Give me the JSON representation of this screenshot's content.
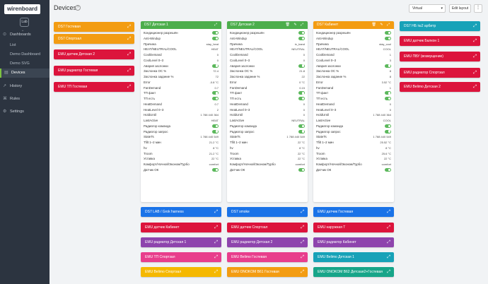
{
  "sidebar": {
    "logo": "wirenboard",
    "location": "Lab",
    "location_caret": "⌄",
    "items": [
      {
        "label": "Dashboards",
        "icon": "dashboard-icon",
        "glyph": "⊙",
        "sub": false,
        "active": false
      },
      {
        "label": "List",
        "sub": true,
        "active": false
      },
      {
        "label": "Demo Dashboard",
        "sub": true,
        "active": false
      },
      {
        "label": "Demo SVG Dashboard",
        "sub": true,
        "active": false
      },
      {
        "label": "Devices",
        "icon": "devices-icon",
        "glyph": "▤",
        "sub": false,
        "active": true
      },
      {
        "label": "History",
        "icon": "history-icon",
        "glyph": "↗",
        "sub": false,
        "active": false
      },
      {
        "label": "Rules",
        "icon": "rules-icon",
        "glyph": "⌘",
        "sub": false,
        "active": false
      },
      {
        "label": "Settings",
        "icon": "settings-icon",
        "glyph": "⚙",
        "sub": false,
        "active": false
      }
    ]
  },
  "header": {
    "title": "Devices",
    "help": "?",
    "select_value": "Virtual",
    "edit_label": "Edit layout",
    "more": "⋮"
  },
  "colors": {
    "orange": "#f39c12",
    "red": "#dc143c",
    "green": "#4cae4c",
    "teal": "#17a2b8",
    "blue": "#1a73e8",
    "purple": "#8e44ad",
    "pink": "#e83e8c",
    "yellow": "#f5b800",
    "sea": "#17a589",
    "sidebar": "#2c3440"
  },
  "col1": [
    {
      "label": "DS7 Гостевая",
      "color": "#f39c12"
    },
    {
      "label": "DS7 Спортзал",
      "color": "#f39c12"
    },
    {
      "label": "EMU датчик Детская 2",
      "color": "#dc143c"
    },
    {
      "label": "EMU радиатор Гостевая",
      "color": "#dc143c"
    },
    {
      "label": "EMU ТП Гостевая",
      "color": "#dc143c"
    }
  ],
  "col5_header": {
    "label": "DS7 НБ №2 арбитр",
    "color": "#17a2b8"
  },
  "col5": [
    {
      "label": "EMU датчик Балкон 1",
      "color": "#dc143c"
    },
    {
      "label": "EMU ПВУ (возмущение)",
      "color": "#dc143c"
    },
    {
      "label": "EMU радиатор Спортзал",
      "color": "#dc143c"
    },
    {
      "label": "EMU Belimo Детская 2",
      "color": "#dc143c"
    }
  ],
  "cards": [
    {
      "title": "DS7 Детская 1",
      "color": "#4cae4c",
      "tools": "⤢",
      "rows": [
        {
          "n": "Кондиционер разрешён",
          "t": 1
        },
        {
          "n": "Anti-Windup",
          "t": 1
        },
        {
          "n": "Причина",
          "v": "stay_heat"
        },
        {
          "n": "HEAT/NEUTRAL/COOL",
          "v": "HEAT"
        },
        {
          "n": "CoolDemand",
          "v": "0"
        },
        {
          "n": "CoolLevel 0–3",
          "v": "0"
        },
        {
          "n": "Авария заслонки",
          "t": 1
        },
        {
          "n": "Заслонка ОС %",
          "v": "72.4"
        },
        {
          "n": "Заслонка задание %",
          "v": "72"
        },
        {
          "n": "Error",
          "v": "-0.8 °C"
        },
        {
          "n": "FanDemand",
          "v": "0.7"
        },
        {
          "n": "ТП факт",
          "t": 1
        },
        {
          "n": "ТП есть",
          "t": 1
        },
        {
          "n": "HeatDemand",
          "v": "0.7"
        },
        {
          "n": "HeatLevel 0–3",
          "v": "2"
        },
        {
          "n": "HoldUntil",
          "v": "1 788 440 364"
        },
        {
          "n": "LastActive",
          "v": "HEAT"
        },
        {
          "n": "Радиатор команда",
          "t": 1
        },
        {
          "n": "Радиатор запрос",
          "t": 1
        },
        {
          "n": "StateTs",
          "v": "1 788 440 549"
        },
        {
          "n": "Tfilt 1–2 мин",
          "v": "21.2 °C"
        },
        {
          "n": "hv",
          "v": "8 °C"
        },
        {
          "n": "Troom",
          "v": "21.2 °C"
        },
        {
          "n": "Уставка",
          "v": "22 °C"
        },
        {
          "n": "Комфорт/Ночной/Эконом/Турбо",
          "v": "comfort"
        },
        {
          "n": "Датчик ОК",
          "t": 1
        }
      ]
    },
    {
      "title": "DS7 Детская 2",
      "color": "#4cae4c",
      "tools": "🗑 ✎ ⤢",
      "rows": [
        {
          "n": "Кондиционер разрешён",
          "t": 1
        },
        {
          "n": "Anti-Windup",
          "t": 1
        },
        {
          "n": "Причина",
          "v": "in_band"
        },
        {
          "n": "HEAT/NEUTRAL/COOL",
          "v": "NEUTRAL"
        },
        {
          "n": "CoolDemand",
          "v": "0"
        },
        {
          "n": "CoolLevel 0–3",
          "v": "0"
        },
        {
          "n": "Авария заслонки",
          "t": 1
        },
        {
          "n": "Заслонка ОС %",
          "v": "21.8"
        },
        {
          "n": "Заслонка задание %",
          "v": "22"
        },
        {
          "n": "Error",
          "v": "0 °C"
        },
        {
          "n": "FanDemand",
          "v": "0.15"
        },
        {
          "n": "ТП факт",
          "t": 1
        },
        {
          "n": "ТП есть",
          "t": 1
        },
        {
          "n": "HeatDemand",
          "v": "0"
        },
        {
          "n": "HeatLevel 0–3",
          "v": "0"
        },
        {
          "n": "HoldUntil",
          "v": "0"
        },
        {
          "n": "LastActive",
          "v": "NEUTRAL"
        },
        {
          "n": "Радиатор команда",
          "t": 1
        },
        {
          "n": "Радиатор запрос",
          "t": 1
        },
        {
          "n": "StateTs",
          "v": "1 788 440 549"
        },
        {
          "n": "Tfilt 1–2 мин",
          "v": "22 °C"
        },
        {
          "n": "hv",
          "v": "8 °C"
        },
        {
          "n": "Troom",
          "v": "22 °C"
        },
        {
          "n": "Уставка",
          "v": "22 °C"
        },
        {
          "n": "Комфорт/Ночной/Эконом/Турбо",
          "v": "comfort"
        },
        {
          "n": "Датчик ОК",
          "t": 1
        }
      ]
    },
    {
      "title": "DS7 Кабинет",
      "color": "#f39c12",
      "tools": "🗑 ✎ ⤢",
      "rows": [
        {
          "n": "Кондиционер разрешён",
          "t": 1
        },
        {
          "n": "Anti-Windup",
          "t": 1
        },
        {
          "n": "Причина",
          "v": "stay_cool"
        },
        {
          "n": "HEAT/NEUTRAL/COOL",
          "v": "COOL"
        },
        {
          "n": "CoolDemand",
          "v": "1"
        },
        {
          "n": "CoolLevel 0–3",
          "v": "3"
        },
        {
          "n": "Авария заслонки",
          "t": 1
        },
        {
          "n": "Заслонка ОС %",
          "v": "8"
        },
        {
          "n": "Заслонка задание %",
          "v": "8"
        },
        {
          "n": "Error",
          "v": "3.52 °C"
        },
        {
          "n": "FanDemand",
          "v": "1"
        },
        {
          "n": "ТП факт",
          "t": 1
        },
        {
          "n": "ТП есть",
          "t": 1
        },
        {
          "n": "HeatDemand",
          "v": "0"
        },
        {
          "n": "HeatLevel 0–3",
          "v": "0"
        },
        {
          "n": "HoldUntil",
          "v": "1 788 440 364"
        },
        {
          "n": "LastActive",
          "v": "COOL"
        },
        {
          "n": "Радиатор команда",
          "t": 1
        },
        {
          "n": "Радиатор запрос",
          "t": 1
        },
        {
          "n": "StateTs",
          "v": "1 788 440 549"
        },
        {
          "n": "Tfilt 1–2 мин",
          "v": "25.52 °C"
        },
        {
          "n": "hv",
          "v": "8 °C"
        },
        {
          "n": "Troom",
          "v": "25.6 °C"
        },
        {
          "n": "Уставка",
          "v": "22 °C"
        },
        {
          "n": "Комфорт/Ночной/Эконом/Турбо",
          "v": "comfort"
        },
        {
          "n": "Датчик ОК",
          "t": 1
        }
      ]
    }
  ],
  "bottom": [
    [
      {
        "label": "DS7 LAB / Grok harness",
        "color": "#1a73e8"
      },
      {
        "label": "EMU датчик Кабинет",
        "color": "#dc143c"
      },
      {
        "label": "EMU радиатор Детская 1",
        "color": "#8e44ad"
      },
      {
        "label": "EMU ТП Спортзал",
        "color": "#e83e8c"
      },
      {
        "label": "EMU Belimo Спортзал",
        "color": "#f5b800"
      }
    ],
    [
      {
        "label": "DS7 smoke",
        "color": "#1a73e8"
      },
      {
        "label": "EMU датчик Спортзал",
        "color": "#dc143c"
      },
      {
        "label": "EMU радиатор Детская 2",
        "color": "#8e44ad"
      },
      {
        "label": "EMU Belimo Гостевая",
        "color": "#e83e8c"
      },
      {
        "label": "EMU ONOKOM B61 Гостевая",
        "color": "#f39c12"
      }
    ],
    [
      {
        "label": "EMU датчик Гостевая",
        "color": "#1a73e8"
      },
      {
        "label": "EMU наружная Т",
        "color": "#dc143c"
      },
      {
        "label": "EMU радиатор Кабинет",
        "color": "#8e44ad"
      },
      {
        "label": "EMU Belimo Детская 1",
        "color": "#17a2b8"
      },
      {
        "label": "EMU ONOKOM B62 Детская2+Гостевая",
        "color": "#17a589"
      }
    ]
  ]
}
